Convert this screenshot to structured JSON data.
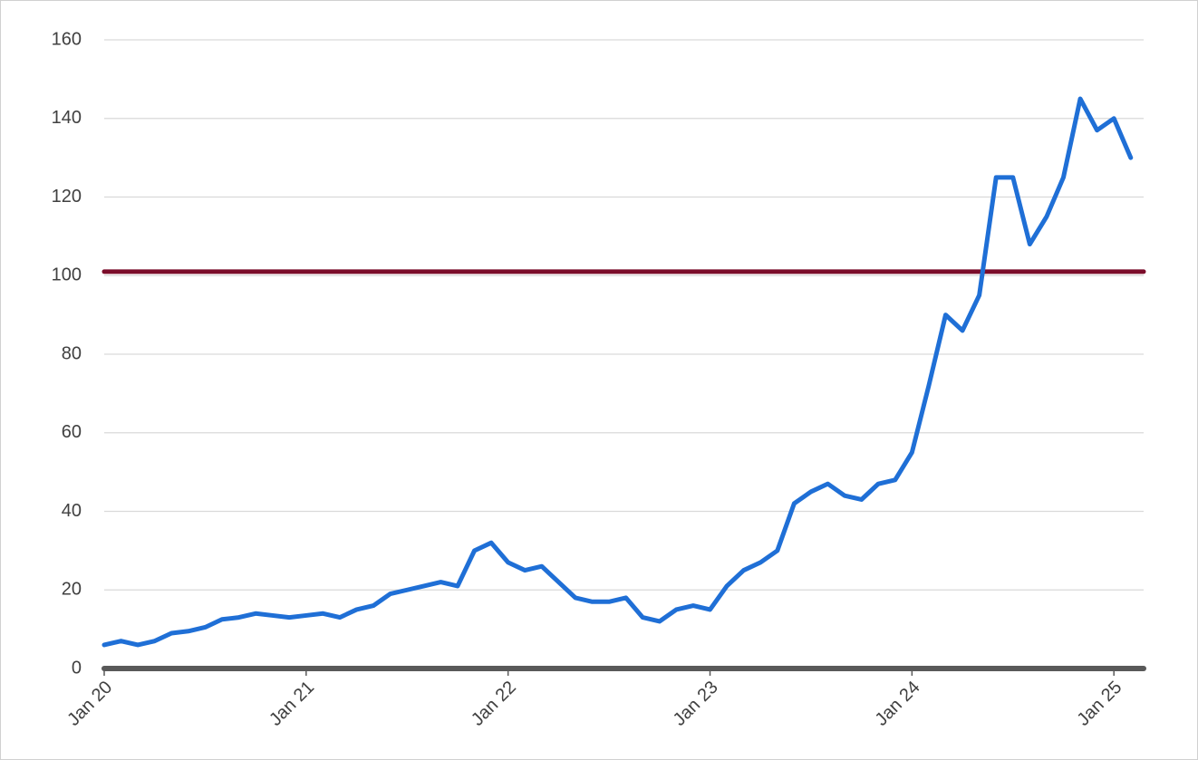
{
  "chart_data": {
    "type": "line",
    "x": [
      "2020-01",
      "2020-02",
      "2020-03",
      "2020-04",
      "2020-05",
      "2020-06",
      "2020-07",
      "2020-08",
      "2020-09",
      "2020-10",
      "2020-11",
      "2020-12",
      "2021-01",
      "2021-02",
      "2021-03",
      "2021-04",
      "2021-05",
      "2021-06",
      "2021-07",
      "2021-08",
      "2021-09",
      "2021-10",
      "2021-11",
      "2021-12",
      "2022-01",
      "2022-02",
      "2022-03",
      "2022-04",
      "2022-05",
      "2022-06",
      "2022-07",
      "2022-08",
      "2022-09",
      "2022-10",
      "2022-11",
      "2022-12",
      "2023-01",
      "2023-02",
      "2023-03",
      "2023-04",
      "2023-05",
      "2023-06",
      "2023-07",
      "2023-08",
      "2023-09",
      "2023-10",
      "2023-11",
      "2023-12",
      "2024-01",
      "2024-02",
      "2024-03",
      "2024-04",
      "2024-05",
      "2024-06",
      "2024-07",
      "2024-08",
      "2024-09",
      "2024-10",
      "2024-11",
      "2024-12",
      "2025-01",
      "2025-02"
    ],
    "series": [
      {
        "color": "#1f6fd6",
        "values": [
          6,
          7,
          6,
          7,
          9,
          9.5,
          10.5,
          12.5,
          13,
          14,
          13.5,
          13,
          13.5,
          14,
          13,
          15,
          16,
          19,
          20,
          21,
          22,
          21,
          30,
          32,
          27,
          25,
          26,
          22,
          18,
          17,
          17,
          18,
          13,
          12,
          15,
          16,
          15,
          21,
          25,
          27,
          30,
          42,
          45,
          47,
          44,
          43,
          47,
          48,
          55,
          72,
          90,
          86,
          95,
          125,
          125,
          108,
          115,
          125,
          145,
          137,
          140,
          130
        ]
      }
    ],
    "reference_line": {
      "value": 101,
      "color": "#7b0c2a"
    },
    "xlim": [
      "2020-01",
      "2025-02"
    ],
    "xticks": [
      {
        "value": "2020-01",
        "label": "Jan 20"
      },
      {
        "value": "2021-01",
        "label": "Jan 21"
      },
      {
        "value": "2022-01",
        "label": "Jan 22"
      },
      {
        "value": "2023-01",
        "label": "Jan 23"
      },
      {
        "value": "2024-01",
        "label": "Jan 24"
      },
      {
        "value": "2025-01",
        "label": "Jan 25"
      }
    ],
    "ylim": [
      0,
      160
    ],
    "yticks": [
      0,
      20,
      40,
      60,
      80,
      100,
      120,
      140,
      160
    ],
    "grid": true
  }
}
